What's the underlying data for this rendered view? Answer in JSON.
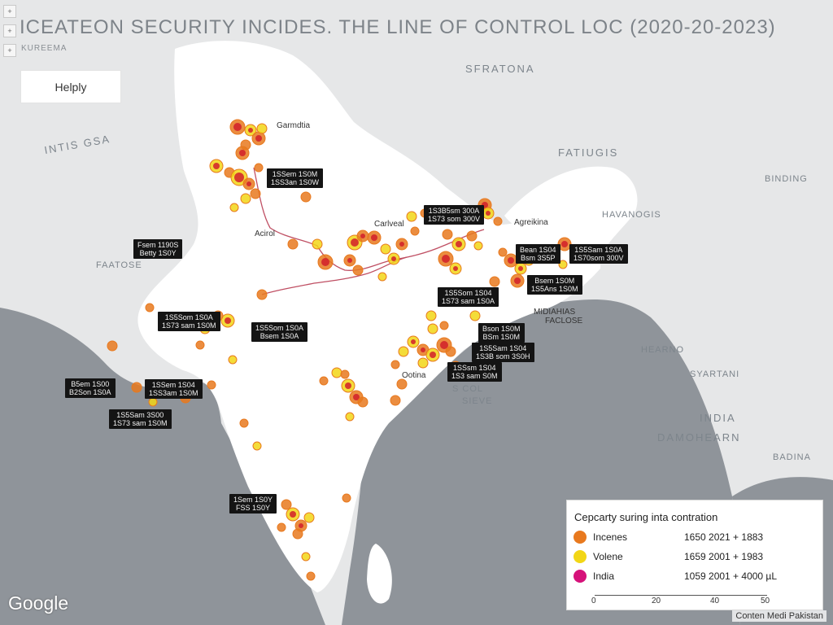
{
  "map": {
    "title": "ICEATEON SECURITY INCIDES. THE LINE OF CONTROL LOC (2020-20-2023)",
    "subtitle": "KUREEMA",
    "controls": [
      "+",
      "+",
      "+"
    ],
    "help_label": "Helply",
    "region_labels": [
      "SFRATONA",
      "INTIS GSA",
      "FATIUGIS",
      "FAATOSE",
      "HAVANOGIS",
      "BINDING",
      "HEARNO",
      "SYARTANI",
      "INDIA",
      "DAMOHEARN",
      "BADINA",
      "S COL",
      "SIEVE"
    ],
    "city_labels": [
      "Garmdtia",
      "Acirol",
      "Carlveal",
      "Agreikina",
      "Ootina",
      "MIDIAHIAS",
      "FACLOSE"
    ],
    "incident_colors": {
      "orange": "#e8791e",
      "yellow": "#f2d616",
      "red": "#d11f2a",
      "magenta": "#d6127a"
    },
    "loc_line_color": "#b0243d",
    "google_logo": "Google",
    "copyright": "Conten Medi Pakistan"
  },
  "callouts": [
    {
      "line1": "1SSem 1S0M",
      "line2": "1SS3an 1S0W"
    },
    {
      "line1": "Fsem 1190S",
      "line2": "Betty 1S0Y"
    },
    {
      "line1": "1S3B5sm 300A",
      "line2": "1S73 som 300V"
    },
    {
      "line1": "Bean 1S04",
      "line2": "Bsm 3S5P"
    },
    {
      "line1": "1S5Sam 1S0A",
      "line2": "1S70som 300V"
    },
    {
      "line1": "1S5Som 1S04",
      "line2": "1S73 sam 1S0A"
    },
    {
      "line1": "Bsem 1S0M",
      "line2": "1S5Ans 1S0M"
    },
    {
      "line1": "1S5Som 1S0A",
      "line2": "1S73 sam 1S0M"
    },
    {
      "line1": "1S5Som 1S0A",
      "line2": "Bsem 1S0A"
    },
    {
      "line1": "Bson 1S0M",
      "line2": "BSm 1S0M"
    },
    {
      "line1": "1S5Sam 1S04",
      "line2": "1S3B som 3S0H"
    },
    {
      "line1": "1SSsm 1S04",
      "line2": "1S3 sam S0M"
    },
    {
      "line1": "B5em 1S00",
      "line2": "B2Son 1S0A"
    },
    {
      "line1": "1SSem 1S04",
      "line2": "1SS3am 1S0M"
    },
    {
      "line1": "1S5Sam 3S00",
      "line2": "1S73 sam 1S0M"
    },
    {
      "line1": "1Sem 1S0Y",
      "line2": "FSS 1S0Y"
    }
  ],
  "legend": {
    "title": "Cepcarty suring inta contration",
    "items": [
      {
        "name": "Incenes",
        "range": "1650 2021 + 1883",
        "color": "#e8791e"
      },
      {
        "name": "Volene",
        "range": "1659 2001 + 1983",
        "color": "#f2d616"
      },
      {
        "name": "India",
        "range": "1059 2001 + 4000 µL",
        "color": "#d6127a"
      }
    ],
    "axis_ticks": [
      "0",
      "20",
      "40",
      "50"
    ]
  }
}
